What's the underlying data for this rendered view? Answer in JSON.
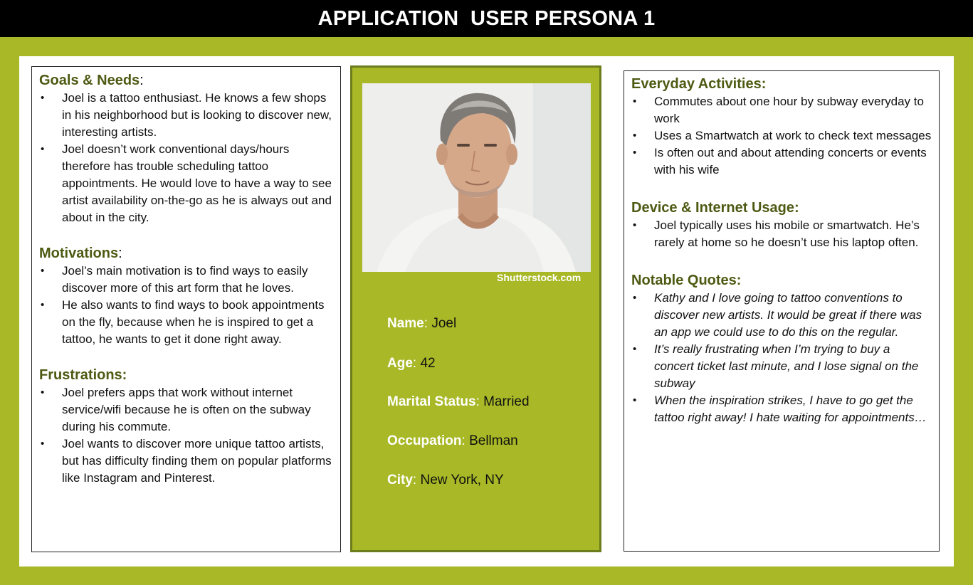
{
  "header": {
    "title": "APPLICATION  USER PERSONA 1"
  },
  "goals": {
    "title": "Goals & Needs",
    "colon": ":",
    "items": [
      "Joel is a tattoo enthusiast. He knows a few shops in his neighborhood but is looking to discover new, interesting artists.",
      "Joel doesn’t work conventional days/hours therefore has trouble scheduling tattoo appointments. He would love to have a way to see artist availability on-the-go as he is always out and about in the city."
    ]
  },
  "motivations": {
    "title": "Motivations",
    "colon": ":",
    "items": [
      "Joel’s main motivation is to find ways to easily discover more of this art form that he loves.",
      "He also wants to find ways to book appointments on the fly, because when he is inspired to get a tattoo, he wants to get it done right away."
    ]
  },
  "frustrations": {
    "title": "Frustrations:",
    "items": [
      "Joel prefers apps that work without internet service/wifi because he is often on the subway during his commute.",
      "Joel wants to discover more unique tattoo artists, but has difficulty finding them on popular platforms like Instagram and Pinterest."
    ]
  },
  "profile": {
    "watermark": "Shutterstock.com",
    "fields": [
      {
        "label": "Name",
        "sep": ": ",
        "value": "Joel"
      },
      {
        "label": "Age",
        "sep": ": ",
        "value": "42"
      },
      {
        "label": "Marital Status",
        "sep": ": ",
        "value": "Married"
      },
      {
        "label": "Occupation",
        "sep": ": ",
        "value": "Bellman"
      },
      {
        "label": "City",
        "sep": ": ",
        "value": "New York, NY"
      }
    ]
  },
  "activities": {
    "title": "Everyday Activities:",
    "items": [
      "Commutes about one hour by subway everyday to work",
      "Uses a Smartwatch at work to check text messages",
      "Is often out and about attending concerts or events with his wife"
    ]
  },
  "device": {
    "title": "Device & Internet Usage:",
    "items": [
      "Joel typically uses his mobile or smartwatch. He’s rarely at home so he doesn’t use his laptop often."
    ]
  },
  "quotes": {
    "title": "Notable Quotes:",
    "items": [
      "Kathy and I love going to tattoo conventions to discover new artists. It would be great if there was an app we could use to do this on the regular.",
      "It’s really frustrating when I’m trying to buy a concert ticket last minute, and I lose signal on the subway",
      "When the inspiration strikes, I have to go get the tattoo right away! I hate waiting for appointments…"
    ]
  },
  "bullet": "•"
}
